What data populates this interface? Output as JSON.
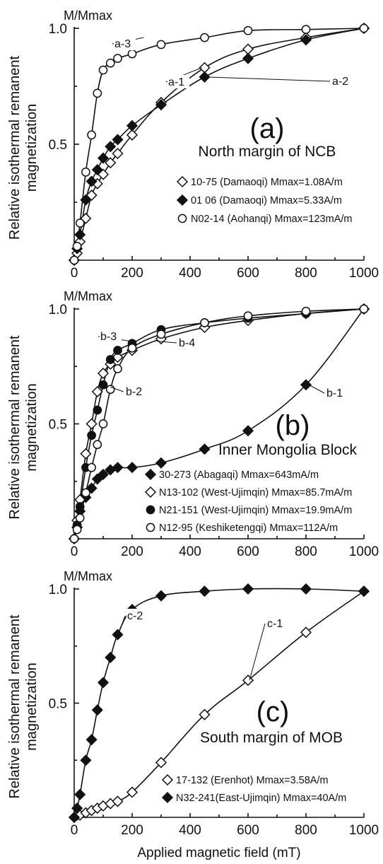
{
  "xlabel": "Applied magnetic field (mT)",
  "ylabel_line1": "Relative isothermal remanent",
  "ylabel_line2": "magnetization",
  "ylabel_top": "M/Mmax",
  "x_ticks": [
    "0",
    "200",
    "400",
    "600",
    "800",
    "1000"
  ],
  "y_ticks": [
    "0.5",
    "1.0"
  ],
  "colors": {
    "ink": "#111111",
    "background": "#ffffff"
  },
  "chart_data": [
    {
      "type": "line",
      "panel_letter": "(a)",
      "subtitle": "North margin of NCB",
      "xlim": [
        0,
        1000
      ],
      "ylim": [
        0,
        1.0
      ],
      "grid": false,
      "legend_position": "lower-right",
      "series": [
        {
          "name": "10-75 (Damaoqi) Mmax=1.08A/m",
          "curve_label": "a-1",
          "marker": "open-diamond",
          "x": [
            0,
            10,
            20,
            40,
            60,
            80,
            100,
            125,
            150,
            200,
            300,
            450,
            600,
            800,
            1000
          ],
          "y": [
            0.0,
            0.03,
            0.08,
            0.18,
            0.28,
            0.33,
            0.37,
            0.42,
            0.46,
            0.54,
            0.68,
            0.83,
            0.91,
            0.96,
            1.0
          ]
        },
        {
          "name": "01 06 (Damaoqi) Mmax=5.33A/m",
          "curve_label": "a-2",
          "marker": "filled-diamond",
          "x": [
            0,
            10,
            20,
            40,
            60,
            80,
            100,
            125,
            150,
            200,
            300,
            450,
            600,
            800,
            1000
          ],
          "y": [
            0.0,
            0.05,
            0.11,
            0.26,
            0.34,
            0.39,
            0.44,
            0.49,
            0.52,
            0.58,
            0.67,
            0.79,
            0.87,
            0.95,
            1.0
          ]
        },
        {
          "name": "N02-14 (Aohanqi) Mmax=123mA/m",
          "curve_label": "a-3",
          "marker": "open-circle",
          "x": [
            0,
            10,
            20,
            40,
            60,
            80,
            100,
            125,
            150,
            200,
            300,
            450,
            600,
            800,
            1000
          ],
          "y": [
            0.0,
            0.06,
            0.16,
            0.38,
            0.54,
            0.72,
            0.82,
            0.85,
            0.87,
            0.89,
            0.93,
            0.96,
            0.99,
            0.995,
            1.0
          ]
        }
      ]
    },
    {
      "type": "line",
      "panel_letter": "(b)",
      "subtitle": "Inner Mongolia Block",
      "xlim": [
        0,
        1000
      ],
      "ylim": [
        0,
        1.0
      ],
      "grid": false,
      "legend_position": "lower-right",
      "series": [
        {
          "name": "30-273 (Abagaqi) Mmax=643mA/m",
          "curve_label": "b-1",
          "marker": "filled-diamond",
          "x": [
            0,
            10,
            20,
            40,
            60,
            80,
            100,
            125,
            150,
            200,
            300,
            450,
            600,
            800,
            1000
          ],
          "y": [
            0.0,
            0.05,
            0.12,
            0.18,
            0.22,
            0.26,
            0.28,
            0.3,
            0.31,
            0.31,
            0.33,
            0.39,
            0.47,
            0.67,
            1.0
          ]
        },
        {
          "name": "N13-102 (West-Ujimqin) Mmax=85.7mA/m",
          "curve_label": "b-4",
          "marker": "open-diamond",
          "x": [
            0,
            10,
            20,
            40,
            60,
            80,
            100,
            125,
            150,
            200,
            300,
            450,
            600,
            800,
            1000
          ],
          "y": [
            0.0,
            0.08,
            0.17,
            0.37,
            0.5,
            0.64,
            0.72,
            0.76,
            0.79,
            0.82,
            0.87,
            0.92,
            0.95,
            0.98,
            1.0
          ]
        },
        {
          "name": "N21-151 (West-Ujimqin) Mmax=19.9mA/m",
          "curve_label": "b-3",
          "marker": "filled-circle",
          "x": [
            0,
            10,
            20,
            40,
            60,
            80,
            100,
            125,
            150,
            200,
            300,
            450,
            600,
            800,
            1000
          ],
          "y": [
            0.0,
            0.06,
            0.14,
            0.31,
            0.45,
            0.56,
            0.67,
            0.78,
            0.82,
            0.85,
            0.91,
            0.94,
            0.96,
            0.98,
            1.0
          ]
        },
        {
          "name": "N12-95 (Keshiketengqi) Mmax=112A/m",
          "curve_label": "b-2",
          "marker": "open-circle",
          "x": [
            0,
            10,
            20,
            40,
            60,
            80,
            100,
            125,
            150,
            200,
            300,
            450,
            600,
            800,
            1000
          ],
          "y": [
            0.0,
            0.04,
            0.09,
            0.2,
            0.31,
            0.41,
            0.5,
            0.65,
            0.74,
            0.83,
            0.89,
            0.94,
            0.97,
            0.99,
            1.0
          ]
        }
      ]
    },
    {
      "type": "line",
      "panel_letter": "(c)",
      "subtitle": "South margin of MOB",
      "xlim": [
        0,
        1000
      ],
      "ylim": [
        0,
        1.0
      ],
      "grid": false,
      "legend_position": "lower-right",
      "series": [
        {
          "name": "17-132 (Erenhot) Mmax=3.58A/m",
          "curve_label": "c-1",
          "marker": "open-diamond",
          "x": [
            0,
            10,
            20,
            40,
            60,
            80,
            100,
            125,
            150,
            200,
            300,
            450,
            600,
            800,
            1000
          ],
          "y": [
            0.0,
            0.01,
            0.01,
            0.02,
            0.03,
            0.04,
            0.05,
            0.06,
            0.07,
            0.11,
            0.24,
            0.45,
            0.6,
            0.81,
            0.99
          ]
        },
        {
          "name": "N32-241(East-Ujimqin) Mmax=40A/m",
          "curve_label": "c-2",
          "marker": "filled-diamond",
          "x": [
            0,
            10,
            20,
            40,
            60,
            80,
            100,
            125,
            150,
            200,
            300,
            450,
            600,
            800,
            1000
          ],
          "y": [
            0.0,
            0.04,
            0.1,
            0.25,
            0.34,
            0.47,
            0.59,
            0.7,
            0.8,
            0.91,
            0.97,
            0.99,
            1.0,
            1.0,
            0.99
          ]
        }
      ]
    }
  ]
}
